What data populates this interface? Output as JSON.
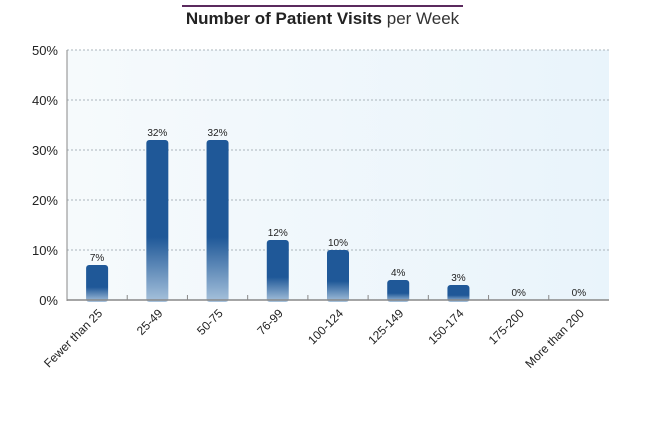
{
  "title": {
    "bold": "Number of Patient Visits",
    "light": "per Week"
  },
  "colors": {
    "title_rule": "#5b2a5e",
    "bar_dark": "#1f5898",
    "bar_light": "#a7c2dc",
    "plot_bg_left": "#f6fafc",
    "plot_bg_right": "#e9f4fb",
    "grid": "#aab4bb",
    "axis": "#888888"
  },
  "chart_data": {
    "type": "bar",
    "title": "Number of Patient Visits per Week",
    "categories": [
      "Fewer than 25",
      "25-49",
      "50-75",
      "76-99",
      "100-124",
      "125-149",
      "150-174",
      "175-200",
      "More than 200"
    ],
    "values": [
      7,
      32,
      32,
      12,
      10,
      4,
      3,
      0,
      0
    ],
    "data_labels": [
      "7%",
      "32%",
      "32%",
      "12%",
      "10%",
      "4%",
      "3%",
      "0%",
      "0%"
    ],
    "y_ticks": [
      0,
      10,
      20,
      30,
      40,
      50
    ],
    "y_tick_labels": [
      "0%",
      "10%",
      "20%",
      "30%",
      "40%",
      "50%"
    ],
    "ylim": [
      0,
      50
    ],
    "grid": true,
    "legend": "none"
  }
}
